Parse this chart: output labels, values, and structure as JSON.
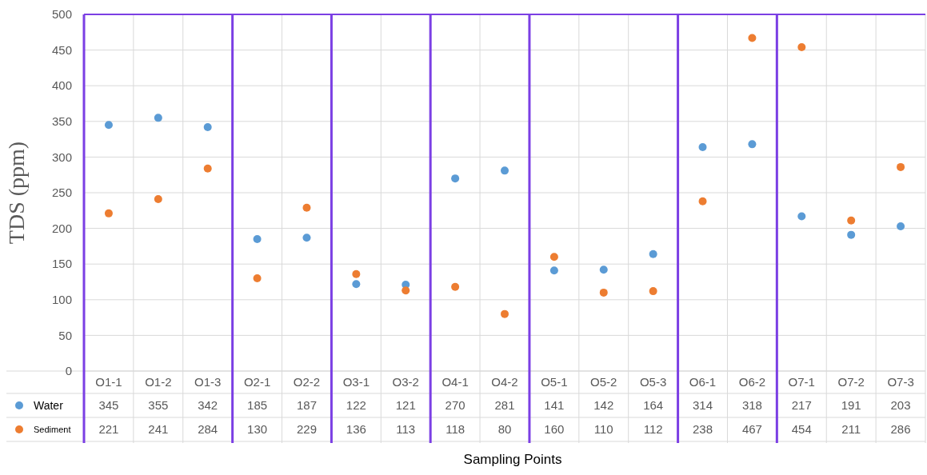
{
  "chart_data": {
    "type": "scatter",
    "xlabel": "Sampling Points",
    "ylabel": "TDS (ppm)",
    "categories": [
      "O1-1",
      "O1-2",
      "O1-3",
      "O2-1",
      "O2-2",
      "O3-1",
      "O3-2",
      "O4-1",
      "O4-2",
      "O5-1",
      "O5-2",
      "O5-3",
      "O6-1",
      "O6-2",
      "O7-1",
      "O7-2",
      "O7-3"
    ],
    "series": [
      {
        "name": "Water",
        "color": "#5b9bd5",
        "values": [
          345,
          355,
          342,
          185,
          187,
          122,
          121,
          270,
          281,
          141,
          142,
          164,
          314,
          318,
          217,
          191,
          203
        ]
      },
      {
        "name": "Sediment",
        "color": "#ed7d31",
        "values": [
          221,
          241,
          284,
          130,
          229,
          136,
          113,
          118,
          80,
          160,
          110,
          112,
          238,
          467,
          454,
          211,
          286
        ]
      }
    ],
    "ylim": [
      0,
      500
    ],
    "yticks": [
      0,
      50,
      100,
      150,
      200,
      250,
      300,
      350,
      400,
      450,
      500
    ],
    "grid": true,
    "marker": "circle",
    "data_labels": true,
    "legend": "bottom left"
  }
}
